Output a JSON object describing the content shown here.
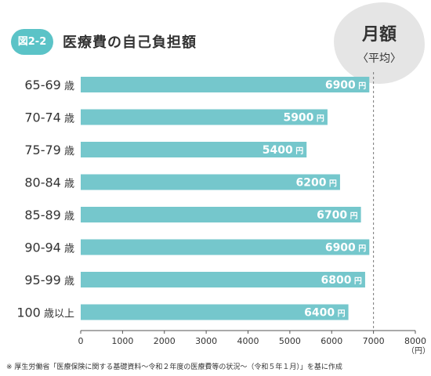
{
  "figure": {
    "badge": "図2-2",
    "title": "医療費の自己負担額"
  },
  "legend_box": {
    "label": "月額",
    "sublabel": "〈平均〉"
  },
  "chart_data": {
    "type": "bar",
    "orientation": "horizontal",
    "title": "医療費の自己負担額",
    "categories": [
      "65-69",
      "70-74",
      "75-79",
      "80-84",
      "85-89",
      "90-94",
      "95-99",
      "100"
    ],
    "category_suffixes": [
      "歳",
      "歳",
      "歳",
      "歳",
      "歳",
      "歳",
      "歳",
      "歳以上"
    ],
    "values": [
      6900,
      5900,
      5400,
      6200,
      6700,
      6900,
      6800,
      6400
    ],
    "value_unit": "円",
    "xlim": [
      0,
      8000
    ],
    "x_ticks": [
      0,
      1000,
      2000,
      3000,
      4000,
      5000,
      6000,
      7000,
      8000
    ],
    "x_unit": "（円）",
    "reference_line": 7000,
    "grid": false,
    "bar_color": "#75c7cc",
    "label_color": "#ffffff"
  },
  "footnote": "※ 厚生労働省「医療保険に関する基礎資料～令和２年度の医療費等の状況～（令和５年１月）」を基に作成"
}
